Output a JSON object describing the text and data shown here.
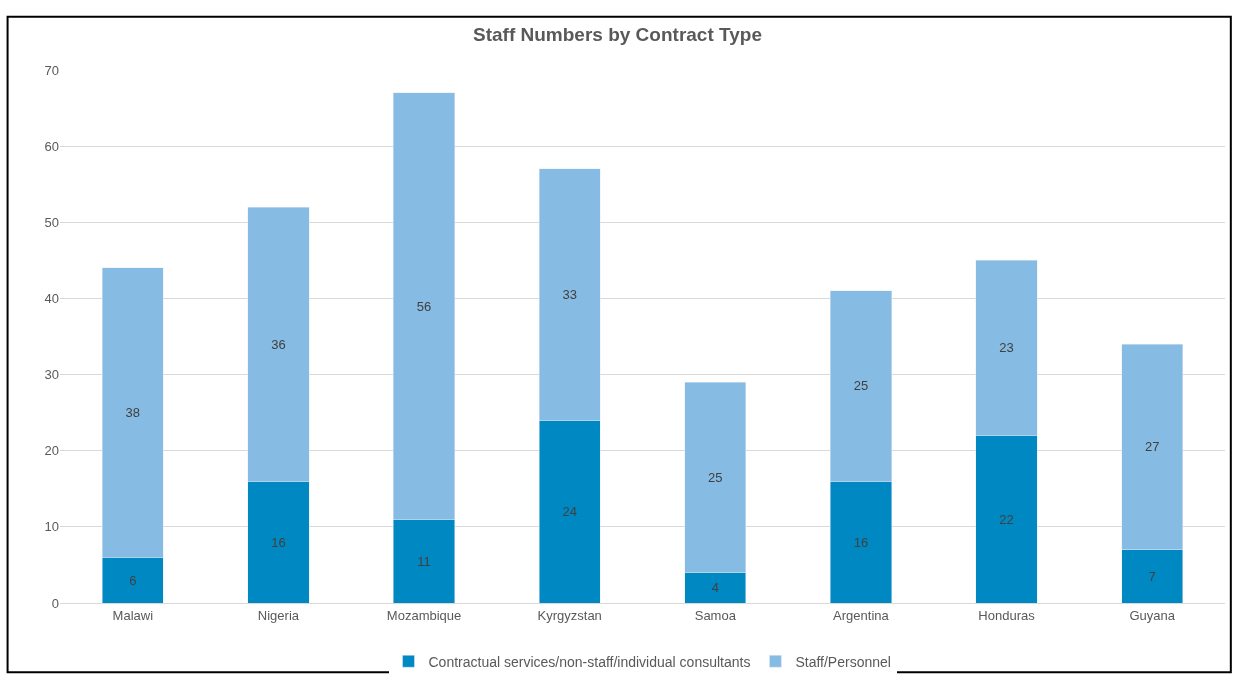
{
  "chart_data": {
    "type": "bar",
    "title": "Staff Numbers by Contract Type",
    "categories": [
      "Malawi",
      "Nigeria",
      "Mozambique",
      "Kyrgyzstan",
      "Samoa",
      "Argentina",
      "Honduras",
      "Guyana"
    ],
    "series": [
      {
        "name": "Contractual services/non-staff/individual consultants",
        "color": "#0088c2",
        "values": [
          6,
          16,
          11,
          24,
          4,
          16,
          22,
          7
        ]
      },
      {
        "name": "Staff/Personnel",
        "color": "#86bbe3",
        "values": [
          38,
          36,
          56,
          33,
          25,
          25,
          23,
          27
        ]
      }
    ],
    "stacked": true,
    "ylim": [
      0,
      70
    ],
    "yticks": [
      0,
      10,
      20,
      30,
      40,
      50,
      60,
      70
    ],
    "grid": "y",
    "legend": "bottom",
    "data_labels": true
  }
}
